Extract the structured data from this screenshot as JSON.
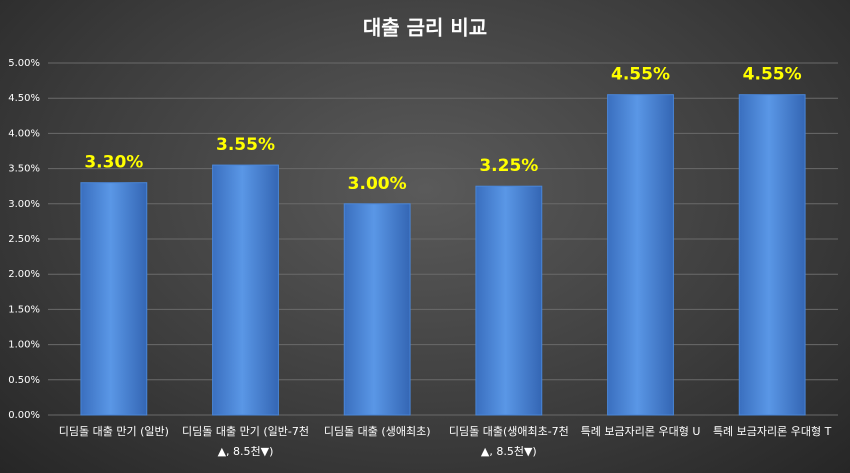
{
  "chart_data": {
    "type": "bar",
    "title": "대출 금리 비교",
    "categories": [
      "디딤돌 대출 만기 (일반)",
      "디딤돌 대출 만기 (일반-7천▲, 8.5천▼)",
      "디딤돌 대출 (생애최초)",
      "디딤돌 대출(생애최초-7천▲, 8.5천▼)",
      "특례 보금자리론 우대형 U",
      "특례 보금자리론 우대형 T"
    ],
    "values": [
      3.3,
      3.55,
      3.0,
      3.25,
      4.55,
      4.55
    ],
    "value_labels": [
      "3.30%",
      "3.55%",
      "3.00%",
      "3.25%",
      "4.55%",
      "4.55%"
    ],
    "color": "#4a86d8",
    "ylim": [
      0,
      5
    ],
    "yticks": [
      {
        "value": 0,
        "label": "0.00%"
      },
      {
        "value": 0.5,
        "label": "0.50%"
      },
      {
        "value": 1,
        "label": "1.00%"
      },
      {
        "value": 1.5,
        "label": "1.50%"
      },
      {
        "value": 2,
        "label": "2.00%"
      },
      {
        "value": 2.5,
        "label": "2.50%"
      },
      {
        "value": 3,
        "label": "3.00%"
      },
      {
        "value": 3.5,
        "label": "3.50%"
      },
      {
        "value": 4,
        "label": "4.00%"
      },
      {
        "value": 4.5,
        "label": "4.50%"
      },
      {
        "value": 5,
        "label": "5.00%"
      }
    ],
    "grid": true
  }
}
